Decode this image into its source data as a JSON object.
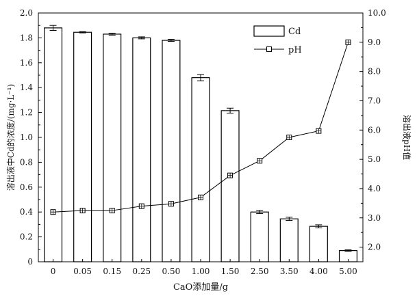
{
  "chart_data": {
    "type": "bar",
    "categories": [
      "0",
      "0.05",
      "0.15",
      "0.25",
      "0.50",
      "1.00",
      "1.50",
      "2.50",
      "3.50",
      "4.00",
      "5.00"
    ],
    "xlabel": "CaO添加量/g",
    "ylabel_left": "溶出液中Cd的浓度/(mg·L⁻¹)",
    "ylabel_right": "溶出液pH值",
    "ylim_left": [
      0,
      2.0
    ],
    "ylim_right": [
      1.5,
      10.0
    ],
    "left_ticks": [
      "0",
      "0.2",
      "0.4",
      "0.6",
      "0.8",
      "1.0",
      "1.2",
      "1.4",
      "1.6",
      "1.8",
      "2.0"
    ],
    "right_ticks": [
      "2.0",
      "3.0",
      "4.0",
      "5.0",
      "6.0",
      "7.0",
      "8.0",
      "9.0",
      "10.0"
    ],
    "legend_position": "top-right",
    "series": [
      {
        "name": "Cd",
        "kind": "bar",
        "axis": "left",
        "values": [
          1.88,
          1.845,
          1.83,
          1.8,
          1.78,
          1.48,
          1.215,
          0.4,
          0.345,
          0.285,
          0.09
        ],
        "errors": [
          0.02,
          0.005,
          0.008,
          0.008,
          0.008,
          0.025,
          0.02,
          0.013,
          0.013,
          0.012,
          0.006
        ]
      },
      {
        "name": "pH",
        "kind": "line",
        "axis": "right",
        "values": [
          3.2,
          3.25,
          3.25,
          3.4,
          3.48,
          3.7,
          4.45,
          4.95,
          5.75,
          5.97,
          9.0
        ]
      }
    ]
  }
}
